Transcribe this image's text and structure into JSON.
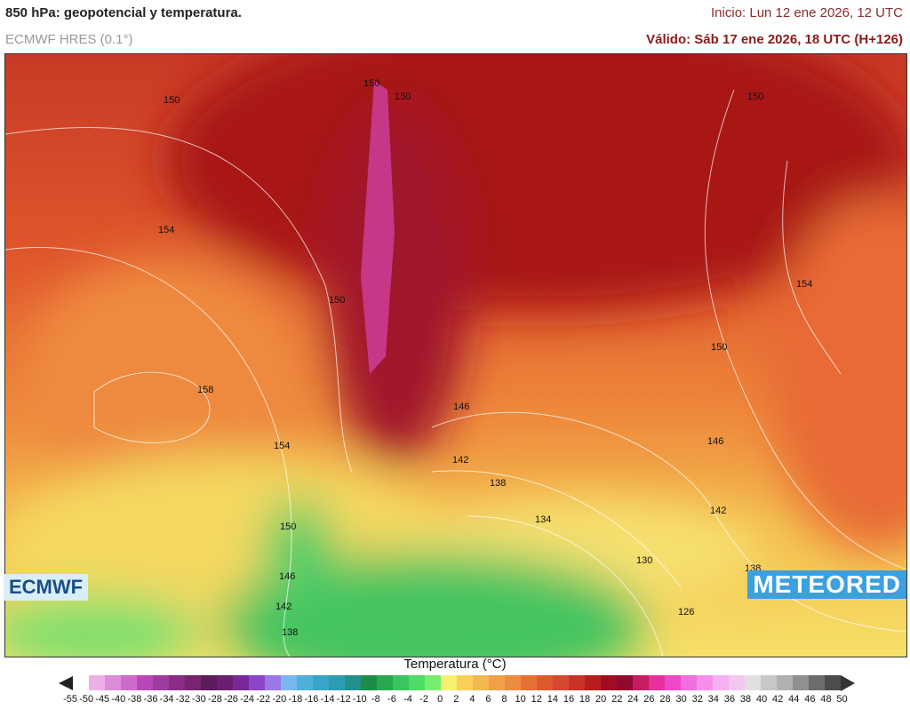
{
  "header": {
    "title": "850 hPa: geopotencial y temperatura.",
    "model": "ECMWF HRES (0.1°)",
    "init": "Inicio: Lun 12 ene 2026, 12 UTC",
    "valid": "Válido: Sáb 17 ene 2026, 18 UTC (H+126)"
  },
  "map": {
    "contour_labels": [
      "150",
      "150",
      "150",
      "150",
      "154",
      "150",
      "154",
      "150",
      "158",
      "146",
      "146",
      "154",
      "142",
      "138",
      "142",
      "134",
      "150",
      "130",
      "138",
      "146",
      "142",
      "126",
      "138"
    ]
  },
  "logos": {
    "left": "ECMWF",
    "right": "METEORED"
  },
  "legend": {
    "title": "Temperatura (°C)",
    "ticks": [
      "-55",
      "-50",
      "-45",
      "-40",
      "-38",
      "-36",
      "-34",
      "-32",
      "-30",
      "-28",
      "-26",
      "-24",
      "-22",
      "-20",
      "-18",
      "-16",
      "-14",
      "-12",
      "-10",
      "-8",
      "-6",
      "-4",
      "-2",
      "0",
      "2",
      "4",
      "6",
      "8",
      "10",
      "12",
      "14",
      "16",
      "18",
      "20",
      "22",
      "24",
      "26",
      "28",
      "30",
      "32",
      "34",
      "36",
      "38",
      "40",
      "42",
      "44",
      "46",
      "48",
      "50"
    ],
    "colors": [
      "#ffffff",
      "#ecb0e6",
      "#dc8cd8",
      "#cc6cc8",
      "#b848b8",
      "#a03ca0",
      "#8a2c88",
      "#782470",
      "#5c1c5c",
      "#6a2070",
      "#7a2898",
      "#8e44c8",
      "#9a78e8",
      "#78b8ee",
      "#50b0d8",
      "#3aa4c8",
      "#2c9cb4",
      "#24908c",
      "#1e8c48",
      "#2aa850",
      "#3cc460",
      "#50dc68",
      "#78ec70",
      "#f8f070",
      "#f8d058",
      "#f4b850",
      "#f0a048",
      "#ec8c40",
      "#e47034",
      "#de5a2c",
      "#d64830",
      "#c83228",
      "#b81c1c",
      "#a00c24",
      "#900a30",
      "#c81c60",
      "#e8309c",
      "#f048c8",
      "#f070e0",
      "#f490ec",
      "#f4b0f0",
      "#f0c8f0",
      "#e0e0e0",
      "#c8c8c8",
      "#b0b0b0",
      "#909090",
      "#6c6c6c",
      "#4c4c4c"
    ]
  }
}
